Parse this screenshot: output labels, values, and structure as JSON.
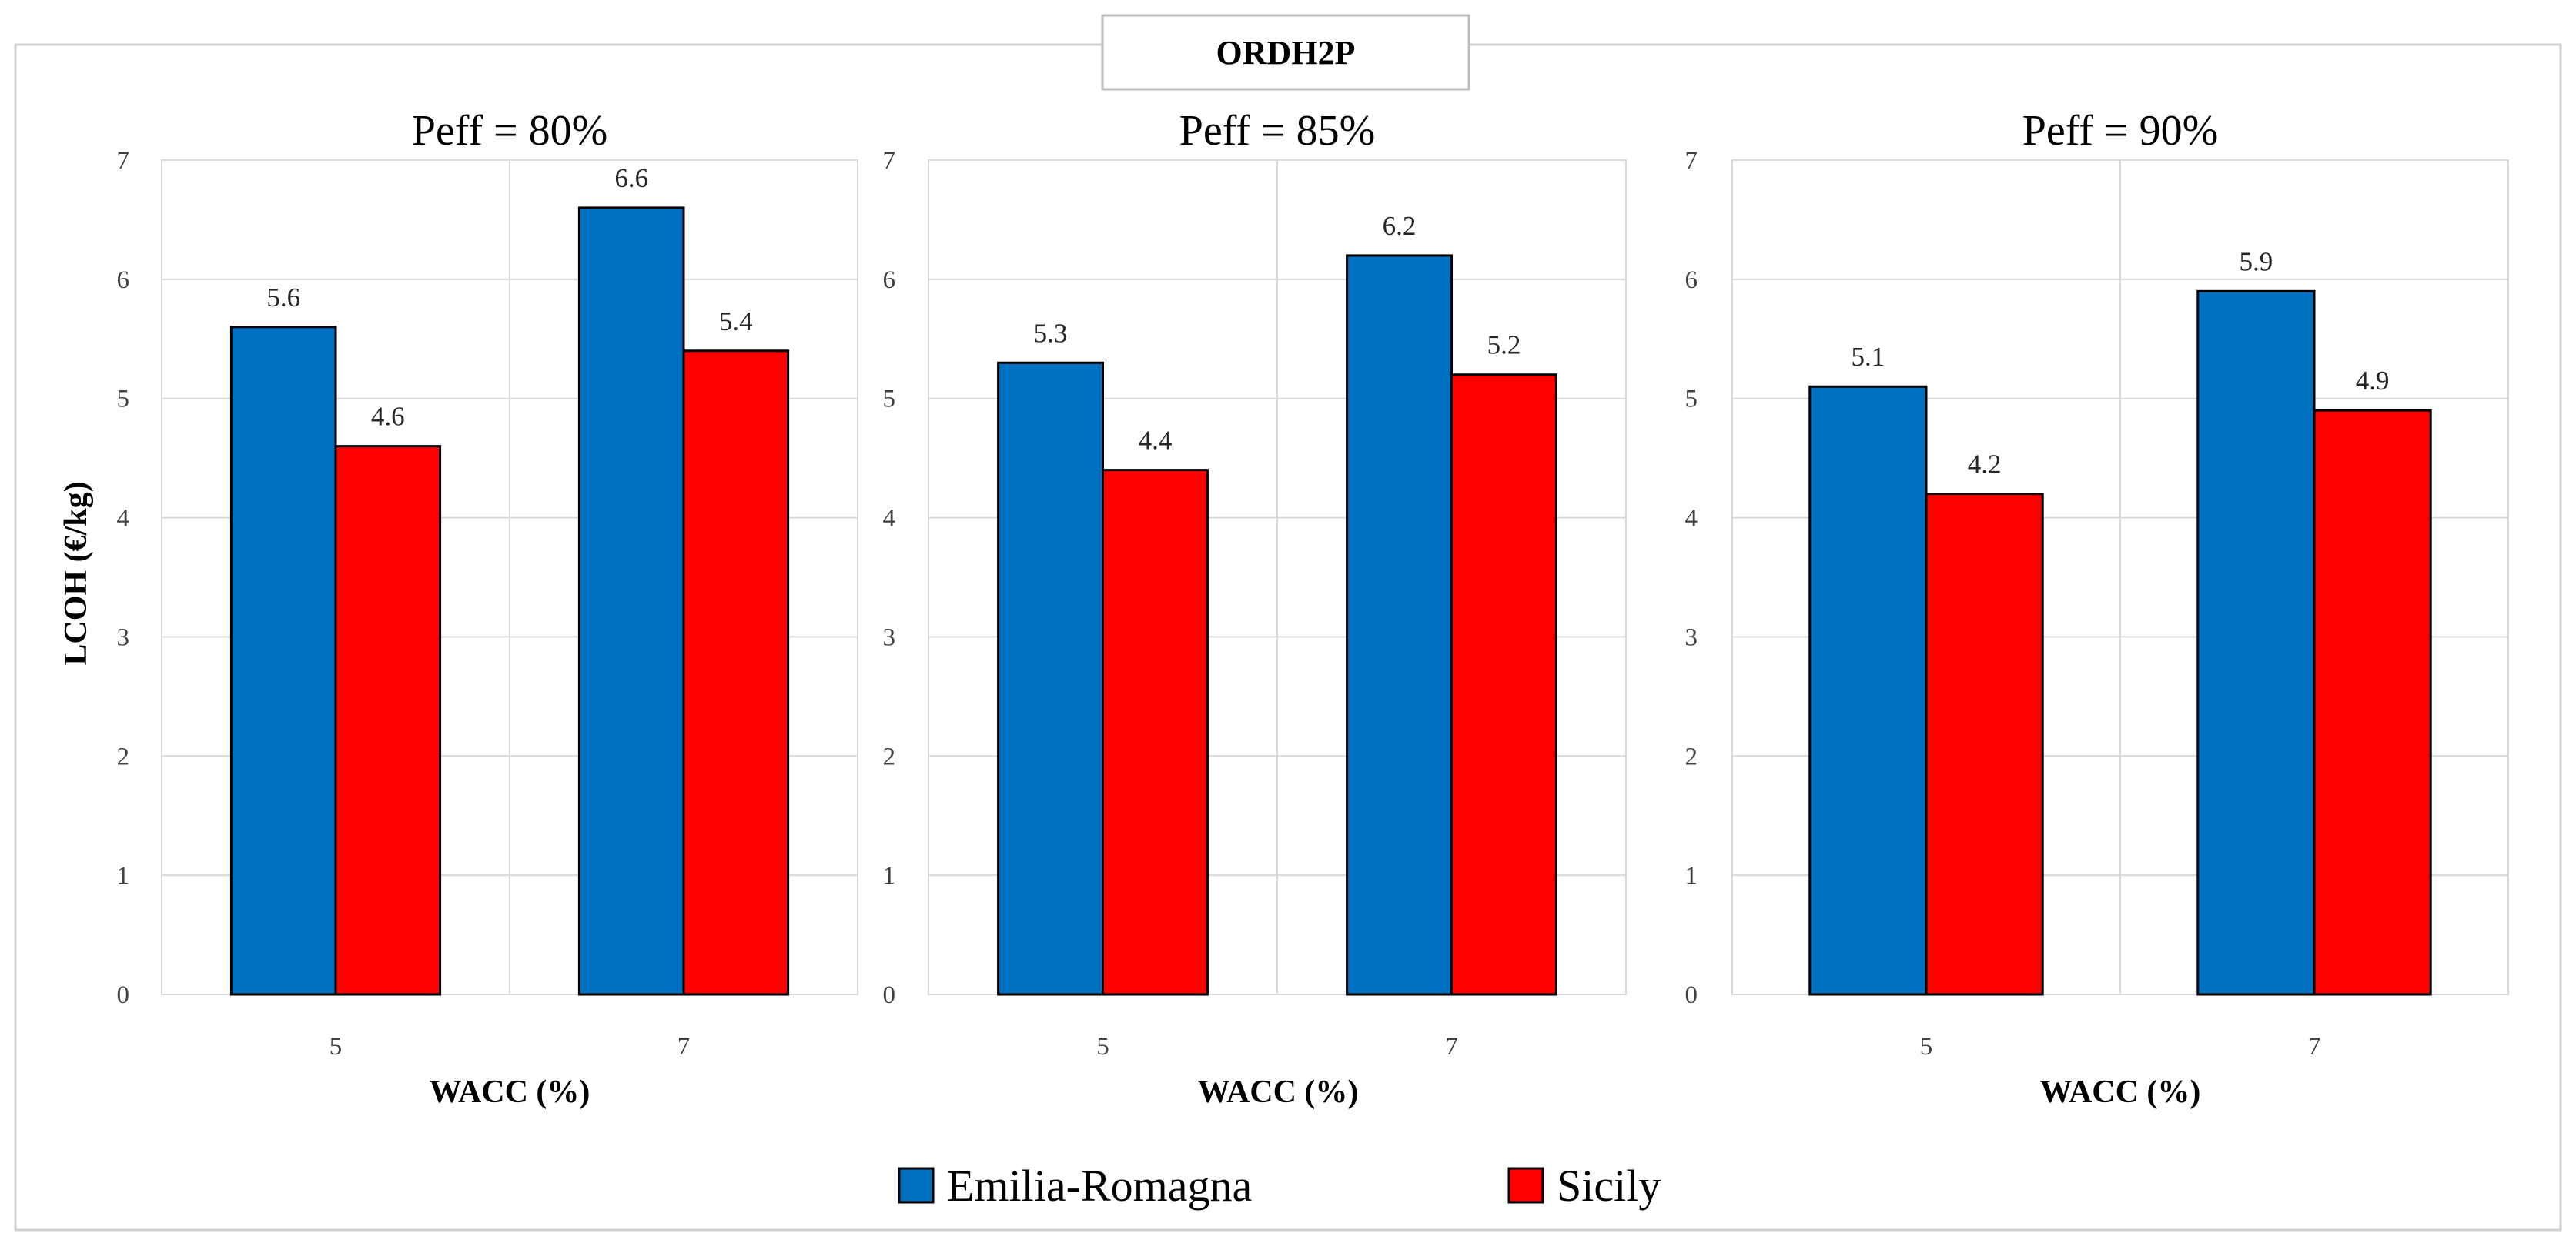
{
  "figure_title": "ORDH2P",
  "colors": {
    "emilia": "#0070C0",
    "sicily": "#FF0000"
  },
  "chart_data": [
    {
      "type": "bar",
      "title": "Peff = 80%",
      "xlabel": "WACC (%)",
      "ylabel": "LCOH (€/kg)",
      "ylim": [
        0,
        7
      ],
      "yticks": [
        0,
        1,
        2,
        3,
        4,
        5,
        6,
        7
      ],
      "categories": [
        "5",
        "7"
      ],
      "series": [
        {
          "name": "Emilia-Romagna",
          "values": [
            5.6,
            6.6
          ],
          "labels": [
            "5.6",
            "6.6"
          ]
        },
        {
          "name": "Sicily",
          "values": [
            4.6,
            5.4
          ],
          "labels": [
            "4.6",
            "5.4"
          ]
        }
      ],
      "grid": true
    },
    {
      "type": "bar",
      "title": "Peff = 85%",
      "xlabel": "WACC (%)",
      "ylabel": "",
      "ylim": [
        0,
        7
      ],
      "yticks": [
        0,
        1,
        2,
        3,
        4,
        5,
        6,
        7
      ],
      "categories": [
        "5",
        "7"
      ],
      "series": [
        {
          "name": "Emilia-Romagna",
          "values": [
            5.3,
            6.2
          ],
          "labels": [
            "5.3",
            "6.2"
          ]
        },
        {
          "name": "Sicily",
          "values": [
            4.4,
            5.2
          ],
          "labels": [
            "4.4",
            "5.2"
          ]
        }
      ],
      "grid": true
    },
    {
      "type": "bar",
      "title": "Peff = 90%",
      "xlabel": "WACC (%)",
      "ylabel": "",
      "ylim": [
        0,
        7
      ],
      "yticks": [
        0,
        1,
        2,
        3,
        4,
        5,
        6,
        7
      ],
      "categories": [
        "5",
        "7"
      ],
      "series": [
        {
          "name": "Emilia-Romagna",
          "values": [
            5.1,
            5.9
          ],
          "labels": [
            "5.1",
            "5.9"
          ]
        },
        {
          "name": "Sicily",
          "values": [
            4.2,
            4.9
          ],
          "labels": [
            "4.2",
            "4.9"
          ]
        }
      ],
      "grid": true
    }
  ],
  "legend": {
    "placement": "bottom-center",
    "items": [
      {
        "label": "Emilia-Romagna",
        "color": "#0070C0"
      },
      {
        "label": "Sicily",
        "color": "#FF0000"
      }
    ]
  }
}
